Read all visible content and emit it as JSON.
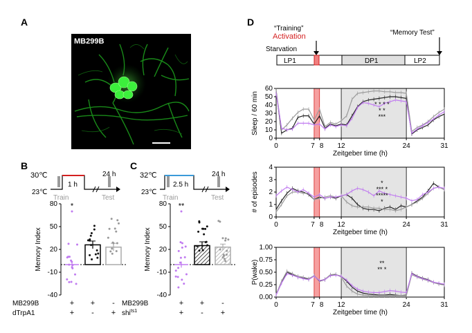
{
  "panels": {
    "a": "A",
    "b": "B",
    "c": "C",
    "d": "D"
  },
  "micrograph": {
    "label": "MB299B"
  },
  "protocol_b": {
    "temp_high": "30℃",
    "temp_low": "23℃",
    "dur1": "1 h",
    "dur2": "24 h",
    "train": "Train",
    "test": "Test"
  },
  "protocol_c": {
    "temp_high": "32℃",
    "temp_low": "23℃",
    "dur1": "2.5 h",
    "dur2": "24 h",
    "train": "Train",
    "test": "Test"
  },
  "colors": {
    "red": "#d42020",
    "blue": "#3a9ad9",
    "purple": "#c07bf0",
    "grey": "#9a9a9a"
  },
  "chart_data": [
    {
      "panel": "B",
      "type": "bar",
      "ylabel": "Memory Index",
      "ylim": [
        -40,
        80
      ],
      "yticks": [
        80,
        50,
        20,
        -10,
        -40
      ],
      "bars": [
        {
          "value": 0,
          "sem": 4,
          "style": "purple-points",
          "signif": "*"
        },
        {
          "value": 26,
          "sem": 5,
          "style": "open-black"
        },
        {
          "value": 23,
          "sem": 5,
          "style": "open-grey"
        }
      ],
      "genotype_rows": [
        {
          "name": "MB299B",
          "marks": [
            "+",
            "+",
            "-"
          ]
        },
        {
          "name": "dTrpA1",
          "marks": [
            "+",
            "-",
            "+"
          ]
        }
      ]
    },
    {
      "panel": "C",
      "type": "bar",
      "ylabel": "Memory Index",
      "ylim": [
        -40,
        80
      ],
      "yticks": [
        80,
        50,
        20,
        -10,
        -40
      ],
      "bars": [
        {
          "value": 0,
          "sem": 4,
          "style": "purple-points",
          "signif": "**"
        },
        {
          "value": 25,
          "sem": 5,
          "style": "hatched-black"
        },
        {
          "value": 23,
          "sem": 4,
          "style": "hatched-grey"
        }
      ],
      "genotype_rows": [
        {
          "name": "MB299B",
          "marks": [
            "+",
            "+",
            "-"
          ]
        },
        {
          "name": "shi",
          "sup": "ts1",
          "marks": [
            "+",
            "-",
            "+"
          ]
        }
      ]
    },
    {
      "panel": "D-timeline",
      "type": "table",
      "labels": {
        "training": "“Training”",
        "activation": "Activation",
        "memory": "“Memory Test”",
        "starvation": "Starvation"
      },
      "segments": [
        "LP1",
        "DP1",
        "LP2"
      ]
    },
    {
      "panel": "D1",
      "type": "line",
      "ylabel": "Sleep / 60 min",
      "xlabel": "Zeitgeber time (h)",
      "xlim": [
        0,
        31
      ],
      "ylim": [
        0,
        60
      ],
      "yticks": [
        0,
        10,
        20,
        30,
        40,
        50,
        60
      ],
      "xticks": [
        "0",
        "7",
        "8",
        "12",
        "24",
        "31"
      ],
      "x": [
        0,
        1,
        2,
        3,
        4,
        5,
        6,
        7,
        8,
        9,
        10,
        11,
        12,
        13,
        14,
        15,
        16,
        17,
        18,
        19,
        20,
        21,
        22,
        23,
        24,
        25,
        26,
        27,
        28,
        29,
        30,
        31
      ],
      "series": [
        {
          "color": "black",
          "values": [
            57,
            6,
            10,
            12,
            25,
            27,
            27,
            17,
            27,
            12,
            17,
            15,
            17,
            16,
            27,
            38,
            44,
            46,
            47,
            48,
            49,
            50,
            50,
            49,
            48,
            5,
            10,
            13,
            16,
            22,
            26,
            29
          ]
        },
        {
          "color": "grey",
          "values": [
            58,
            10,
            16,
            24,
            31,
            35,
            35,
            22,
            35,
            14,
            19,
            17,
            21,
            27,
            47,
            54,
            55,
            56,
            57,
            57,
            56,
            56,
            55,
            55,
            54,
            8,
            13,
            16,
            20,
            26,
            31,
            35
          ]
        },
        {
          "color": "purple",
          "values": [
            54,
            12,
            10,
            11,
            18,
            18,
            18,
            16,
            17,
            11,
            16,
            14,
            16,
            15,
            24,
            37,
            43,
            42,
            40,
            38,
            42,
            44,
            46,
            45,
            44,
            6,
            11,
            15,
            19,
            23,
            28,
            32
          ]
        }
      ],
      "signif": [
        "*  *  *  *",
        "*   *",
        "***"
      ]
    },
    {
      "panel": "D2",
      "type": "line",
      "ylabel": "# of episodes",
      "xlabel": "Zeitgeber time (h)",
      "xlim": [
        0,
        31
      ],
      "ylim": [
        0,
        4
      ],
      "yticks": [
        0,
        1,
        2,
        3,
        4
      ],
      "xticks": [
        "0",
        "7",
        "8",
        "12",
        "24",
        "31"
      ],
      "x": [
        0,
        1,
        2,
        3,
        4,
        5,
        6,
        7,
        8,
        9,
        10,
        11,
        12,
        13,
        14,
        15,
        16,
        17,
        18,
        19,
        20,
        21,
        22,
        23,
        24,
        25,
        26,
        27,
        28,
        29,
        30,
        31
      ],
      "series": [
        {
          "color": "black",
          "values": [
            0.6,
            1.3,
            1.9,
            2.3,
            2.1,
            2.0,
            1.8,
            1.4,
            1.6,
            1.5,
            1.6,
            1.5,
            1.7,
            1.8,
            1.5,
            1.0,
            0.7,
            0.6,
            0.6,
            0.5,
            0.7,
            0.8,
            0.6,
            0.9,
            0.8,
            1.0,
            1.3,
            1.6,
            2.1,
            2.7,
            2.4,
            2.2
          ]
        },
        {
          "color": "grey",
          "values": [
            0.4,
            1.0,
            1.7,
            2.0,
            2.0,
            1.9,
            1.9,
            1.4,
            1.5,
            1.6,
            1.7,
            1.6,
            1.7,
            1.2,
            0.9,
            0.8,
            0.8,
            0.8,
            0.7,
            0.7,
            0.6,
            0.6,
            0.5,
            0.6,
            0.8,
            1.0,
            1.2,
            1.5,
            1.9,
            2.3,
            2.4,
            2.2
          ]
        },
        {
          "color": "purple",
          "values": [
            1.7,
            2.1,
            2.4,
            2.2,
            2.0,
            2.2,
            1.9,
            1.6,
            1.8,
            1.5,
            1.6,
            1.6,
            1.7,
            1.8,
            2.1,
            2.3,
            2.2,
            2.0,
            1.7,
            2.1,
            1.9,
            1.8,
            1.7,
            1.6,
            1.5,
            1.3,
            1.4,
            1.8,
            2.0,
            2.3,
            2.4,
            2.3
          ]
        }
      ],
      "signif": [
        "*",
        "*** *",
        "*****",
        "*"
      ]
    },
    {
      "panel": "D3",
      "type": "line",
      "ylabel": "P(wake)",
      "xlabel": "Zeitgeber time (h)",
      "xlim": [
        0,
        31
      ],
      "ylim": [
        0,
        1
      ],
      "yticks": [
        "0.00",
        "0.25",
        "0.50",
        "0.75",
        "1.00"
      ],
      "xticks": [
        "0",
        "7",
        "8",
        "12",
        "24",
        "31"
      ],
      "x": [
        0,
        1,
        2,
        3,
        4,
        5,
        6,
        7,
        8,
        9,
        10,
        11,
        12,
        13,
        14,
        15,
        16,
        17,
        18,
        19,
        20,
        21,
        22,
        23,
        24,
        25,
        26,
        27,
        28,
        29,
        30,
        31
      ],
      "series": [
        {
          "color": "black",
          "values": [
            0.05,
            0.3,
            0.5,
            0.45,
            0.4,
            0.38,
            0.36,
            0.43,
            0.32,
            0.35,
            0.44,
            0.45,
            0.42,
            0.32,
            0.2,
            0.12,
            0.08,
            0.06,
            0.05,
            0.04,
            0.04,
            0.05,
            0.04,
            0.03,
            0.04,
            0.48,
            0.42,
            0.38,
            0.35,
            0.3,
            0.27,
            0.25
          ]
        },
        {
          "color": "grey",
          "values": [
            0.05,
            0.32,
            0.52,
            0.47,
            0.42,
            0.4,
            0.37,
            0.43,
            0.33,
            0.36,
            0.45,
            0.46,
            0.4,
            0.22,
            0.12,
            0.06,
            0.04,
            0.03,
            0.03,
            0.03,
            0.03,
            0.03,
            0.03,
            0.03,
            0.03,
            0.45,
            0.4,
            0.36,
            0.33,
            0.29,
            0.26,
            0.24
          ]
        },
        {
          "color": "purple",
          "values": [
            0.04,
            0.28,
            0.47,
            0.44,
            0.4,
            0.37,
            0.35,
            0.42,
            0.33,
            0.35,
            0.43,
            0.44,
            0.42,
            0.34,
            0.23,
            0.16,
            0.12,
            0.1,
            0.09,
            0.09,
            0.11,
            0.13,
            0.12,
            0.1,
            0.09,
            0.47,
            0.41,
            0.37,
            0.34,
            0.3,
            0.28,
            0.26
          ]
        }
      ],
      "signif": [
        "**",
        "**  *"
      ]
    }
  ]
}
